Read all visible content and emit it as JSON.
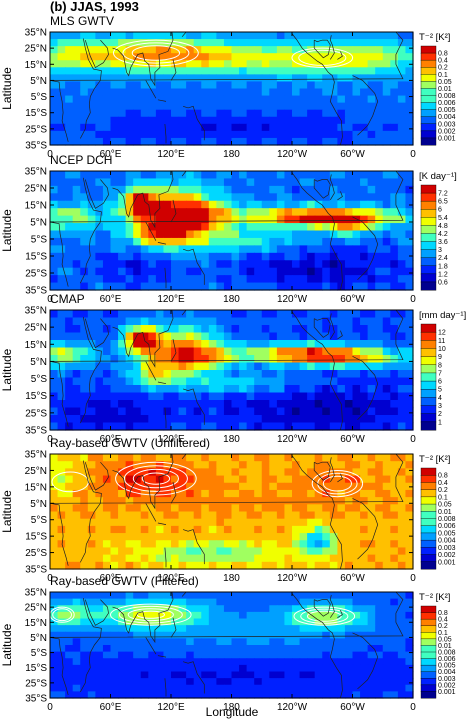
{
  "figure": {
    "heading": "(b) JJAS, 1993",
    "xlabel": "Longitude"
  },
  "chart_data": [
    {
      "type": "heatmap",
      "title": "MLS GWTV",
      "ylabel": "Latitude",
      "colorbar_label": "T⁻² [K²]",
      "colorbar_ticks": [
        "0.8",
        "0.4",
        "0.2",
        "0.1",
        "0.05",
        "0.01",
        "0.008",
        "0.006",
        "0.005",
        "0.004",
        "0.003",
        "0.002",
        "0.001"
      ],
      "x_ticks": [
        "0",
        "60°E",
        "120°E",
        "180",
        "120°W",
        "60°W",
        "0"
      ],
      "y_ticks": [
        "35°N",
        "25°N",
        "15°N",
        "5°N",
        "5°S",
        "15°S",
        "25°S",
        "35°S"
      ],
      "xlim": [
        0,
        360
      ],
      "ylim": [
        -35,
        35
      ],
      "field": "mls",
      "contours": true
    },
    {
      "type": "heatmap",
      "title": "NCEP DCH",
      "ylabel": "Latitude",
      "colorbar_label": "[K day⁻¹]",
      "colorbar_ticks": [
        "7.2",
        "6.5",
        "6",
        "5.4",
        "4.8",
        "4.2",
        "3.6",
        "3",
        "2.4",
        "1.8",
        "1.2",
        "0.6"
      ],
      "x_ticks": [
        "0",
        "60°E",
        "120°E",
        "180",
        "120°W",
        "60°W",
        "0"
      ],
      "y_ticks": [
        "35°N",
        "25°N",
        "15°N",
        "5°N",
        "5°S",
        "15°S",
        "25°S",
        "35°S"
      ],
      "xlim": [
        0,
        360
      ],
      "ylim": [
        -35,
        35
      ],
      "field": "ncep",
      "contours": false
    },
    {
      "type": "heatmap",
      "title": "CMAP",
      "ylabel": "Latitude",
      "colorbar_label": "[mm day⁻¹]",
      "colorbar_ticks": [
        "12",
        "11",
        "10",
        "9",
        "8",
        "7",
        "6",
        "5",
        "4",
        "3",
        "2",
        "1"
      ],
      "x_ticks": [
        "0",
        "60°E",
        "120°E",
        "180",
        "120°W",
        "60°W",
        "0"
      ],
      "y_ticks": [
        "35°N",
        "25°N",
        "15°N",
        "5°N",
        "5°S",
        "15°S",
        "25°S",
        "35°S"
      ],
      "xlim": [
        0,
        360
      ],
      "ylim": [
        -35,
        35
      ],
      "field": "cmap",
      "contours": false
    },
    {
      "type": "heatmap",
      "title": "Ray-based GWTV (Unfiltered)",
      "ylabel": "Latitude",
      "colorbar_label": "T⁻² [K²]",
      "colorbar_ticks": [
        "0.8",
        "0.4",
        "0.2",
        "0.1",
        "0.05",
        "0.01",
        "0.008",
        "0.006",
        "0.005",
        "0.004",
        "0.003",
        "0.002",
        "0.001"
      ],
      "x_ticks": [
        "0",
        "60°E",
        "120°E",
        "180",
        "120°W",
        "60°W",
        "0"
      ],
      "y_ticks": [
        "35°N",
        "25°N",
        "15°N",
        "5°N",
        "5°S",
        "15°S",
        "25°S",
        "35°S"
      ],
      "xlim": [
        0,
        360
      ],
      "ylim": [
        -35,
        35
      ],
      "field": "unfiltered",
      "contours": true
    },
    {
      "type": "heatmap",
      "title": "Ray-based GWTV (Filtered)",
      "ylabel": "Latitude",
      "colorbar_label": "T⁻² [K²]",
      "colorbar_ticks": [
        "0.8",
        "0.4",
        "0.2",
        "0.1",
        "0.05",
        "0.01",
        "0.008",
        "0.006",
        "0.005",
        "0.004",
        "0.003",
        "0.002",
        "0.001"
      ],
      "x_ticks": [
        "0",
        "60°E",
        "120°E",
        "180",
        "120°W",
        "60°W",
        "0"
      ],
      "y_ticks": [
        "35°N",
        "25°N",
        "15°N",
        "5°N",
        "5°S",
        "15°S",
        "25°S",
        "35°S"
      ],
      "xlim": [
        0,
        360
      ],
      "ylim": [
        -35,
        35
      ],
      "field": "filtered",
      "contours": true
    }
  ],
  "palette": [
    "#00008f",
    "#0000d0",
    "#0020ff",
    "#0060ff",
    "#00a0ff",
    "#00d8ff",
    "#40ffc0",
    "#a0ff60",
    "#f0ff00",
    "#ffc000",
    "#ff8000",
    "#ff3000",
    "#d00000"
  ]
}
